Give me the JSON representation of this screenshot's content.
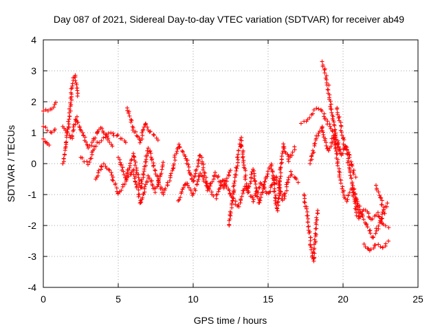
{
  "chart_data": {
    "type": "scatter",
    "title": "Day 087 of 2021, Sidereal Day-to-day VTEC variation (SDTVAR) for receiver ab49",
    "xlabel": "GPS time / hours",
    "ylabel": "SDTVAR / TECUs",
    "xlim": [
      0,
      25
    ],
    "ylim": [
      -4,
      4
    ],
    "xticks": [
      "0",
      "5",
      "10",
      "15",
      "20",
      "25"
    ],
    "yticks": [
      "-4",
      "-3",
      "-2",
      "-1",
      "0",
      "1",
      "2",
      "3",
      "4"
    ],
    "grid": true,
    "marker": "plus",
    "color": "#ff0000",
    "series": [
      {
        "name": "SDTVAR",
        "segments": [
          {
            "x": [
              0.0,
              0.3,
              0.6,
              0.8
            ],
            "y": [
              1.7,
              1.75,
              1.8,
              1.95
            ]
          },
          {
            "x": [
              0.0,
              0.3,
              0.6,
              0.8
            ],
            "y": [
              1.2,
              1.1,
              1.0,
              1.1
            ]
          },
          {
            "x": [
              0.0,
              0.2,
              0.4
            ],
            "y": [
              0.8,
              0.65,
              0.6
            ]
          },
          {
            "x": [
              1.3,
              1.5,
              1.7,
              1.9,
              2.1,
              2.3
            ],
            "y": [
              0.0,
              0.6,
              1.3,
              2.4,
              2.9,
              2.2
            ]
          },
          {
            "x": [
              1.3,
              1.6,
              1.9,
              2.2,
              2.6,
              3.0,
              3.4,
              3.8,
              4.2,
              4.6
            ],
            "y": [
              1.2,
              1.0,
              0.8,
              1.5,
              1.0,
              0.5,
              0.8,
              1.2,
              0.9,
              0.6
            ]
          },
          {
            "x": [
              2.5,
              3.0,
              3.5,
              4.0,
              4.5,
              5.0,
              5.5
            ],
            "y": [
              0.2,
              0.0,
              0.6,
              0.8,
              1.0,
              0.9,
              0.7
            ]
          },
          {
            "x": [
              3.5,
              4.0,
              4.5,
              5.0,
              5.5,
              6.0,
              6.5,
              7.0,
              7.5,
              8.0
            ],
            "y": [
              -0.5,
              0.0,
              -0.3,
              -1.0,
              -0.6,
              -0.2,
              -1.3,
              -0.4,
              -0.9,
              0.0
            ]
          },
          {
            "x": [
              5.0,
              5.5,
              6.0,
              6.5,
              7.0,
              7.5,
              8.0,
              8.5,
              9.0,
              9.5,
              10.0,
              10.5,
              11.0,
              11.5,
              12.0,
              12.5
            ],
            "y": [
              0.2,
              -0.5,
              0.3,
              -0.8,
              0.5,
              -0.3,
              -1.0,
              -0.4,
              0.6,
              0.2,
              -0.6,
              0.3,
              -0.9,
              -0.3,
              -0.8,
              -0.2
            ]
          },
          {
            "x": [
              5.6,
              6.0,
              6.5,
              6.8,
              7.2,
              7.6
            ],
            "y": [
              1.8,
              1.1,
              0.7,
              1.3,
              1.0,
              0.8
            ]
          },
          {
            "x": [
              9.0,
              9.5,
              10.0,
              10.5,
              11.0,
              11.5,
              12.0,
              12.5,
              13.0,
              13.5,
              14.0,
              14.5,
              15.0,
              15.5,
              16.0,
              16.5,
              17.0
            ],
            "y": [
              -1.2,
              -0.6,
              -1.0,
              -0.3,
              -0.8,
              -1.1,
              -0.5,
              -1.0,
              -1.4,
              -0.7,
              -1.2,
              -0.6,
              -1.0,
              -0.4,
              -1.2,
              -0.3,
              -0.6
            ]
          },
          {
            "x": [
              12.4,
              12.8,
              13.2,
              13.6,
              14.0,
              14.4,
              14.8,
              15.2,
              15.6,
              16.0,
              16.4,
              16.8
            ],
            "y": [
              -2.0,
              -0.4,
              0.8,
              -0.9,
              -0.2,
              -1.3,
              -0.5,
              0.0,
              -1.5,
              0.6,
              0.1,
              0.5
            ]
          },
          {
            "x": [
              17.2,
              17.5,
              17.8,
              18.1,
              18.4,
              18.7,
              19.0,
              19.3,
              19.6,
              19.9,
              20.2,
              20.5,
              20.8
            ],
            "y": [
              1.3,
              1.4,
              1.5,
              1.7,
              1.8,
              1.6,
              1.3,
              1.0,
              0.6,
              0.3,
              0.6,
              0.1,
              -0.4
            ]
          },
          {
            "x": [
              17.4,
              17.7,
              18.0,
              18.3
            ],
            "y": [
              -1.0,
              -2.0,
              -3.15,
              -1.5
            ]
          },
          {
            "x": [
              17.8,
              18.2,
              18.6,
              19.0,
              19.4,
              19.8,
              20.2,
              20.6,
              21.0,
              21.4
            ],
            "y": [
              0.0,
              0.8,
              1.2,
              0.4,
              0.9,
              -0.5,
              -1.2,
              -0.8,
              -1.8,
              -1.5
            ]
          },
          {
            "x": [
              18.6,
              18.8,
              19.0,
              19.2,
              19.4,
              19.6,
              19.8
            ],
            "y": [
              3.3,
              3.0,
              2.5,
              1.8,
              1.2,
              0.8,
              0.3
            ]
          },
          {
            "x": [
              19.6,
              19.8,
              20.0,
              20.2,
              20.5,
              20.8,
              21.1
            ],
            "y": [
              1.8,
              1.3,
              0.8,
              0.4,
              -0.3,
              -1.0,
              -1.6
            ]
          },
          {
            "x": [
              20.8,
              21.2,
              21.6,
              22.0,
              22.4,
              22.8,
              23.0
            ],
            "y": [
              -1.0,
              -1.6,
              -2.0,
              -2.4,
              -2.0,
              -1.4,
              -1.3
            ]
          },
          {
            "x": [
              21.4,
              21.8,
              22.2,
              22.6,
              23.0
            ],
            "y": [
              -2.6,
              -2.8,
              -2.6,
              -2.75,
              -2.5
            ]
          },
          {
            "x": [
              21.5,
              21.9,
              22.3,
              22.7,
              23.0
            ],
            "y": [
              -1.5,
              -1.8,
              -1.6,
              -2.0,
              -2.1
            ]
          },
          {
            "x": [
              22.2,
              22.4,
              22.6,
              22.8
            ],
            "y": [
              -0.7,
              -1.0,
              -1.3,
              -1.6
            ]
          }
        ]
      }
    ]
  }
}
